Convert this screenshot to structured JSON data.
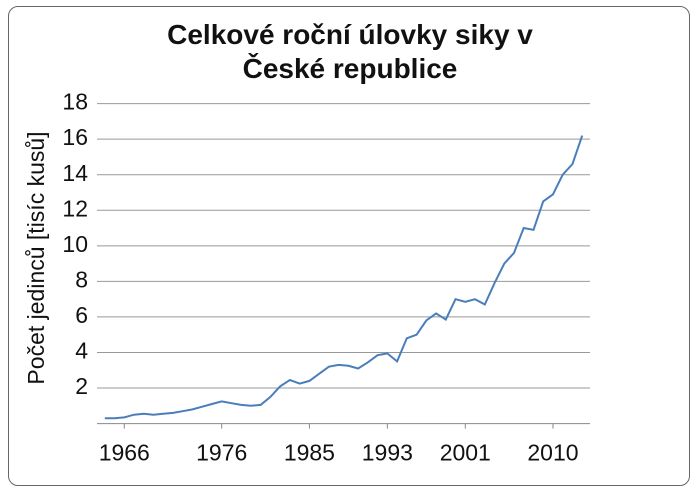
{
  "chart_data": {
    "type": "line",
    "title": "Celkové roční úlovky siky v České republice",
    "y_label": "Počet jedinců [tisíc kusů]",
    "x": [
      1964,
      1965,
      1966,
      1967,
      1968,
      1969,
      1970,
      1971,
      1972,
      1973,
      1974,
      1975,
      1976,
      1977,
      1978,
      1979,
      1980,
      1981,
      1982,
      1983,
      1984,
      1985,
      1986,
      1987,
      1988,
      1989,
      1990,
      1991,
      1992,
      1993,
      1994,
      1995,
      1996,
      1997,
      1998,
      1999,
      2000,
      2001,
      2002,
      2003,
      2004,
      2005,
      2006,
      2007,
      2008,
      2009,
      2010,
      2011,
      2012,
      2013
    ],
    "series": [
      {
        "color": "#4a7ebb",
        "values": [
          0.3,
          0.3,
          0.35,
          0.5,
          0.55,
          0.5,
          0.55,
          0.6,
          0.7,
          0.8,
          0.95,
          1.1,
          1.25,
          1.15,
          1.05,
          1.0,
          1.05,
          1.5,
          2.1,
          2.45,
          2.25,
          2.4,
          2.8,
          3.2,
          3.3,
          3.25,
          3.1,
          3.45,
          3.85,
          3.95,
          3.5,
          4.8,
          5.0,
          5.8,
          6.2,
          5.85,
          7.0,
          6.85,
          7.0,
          6.7,
          7.9,
          9.0,
          9.6,
          11.0,
          10.9,
          12.5,
          12.9,
          14.0,
          14.6,
          16.2
        ]
      }
    ],
    "xlim": [
      1963.2,
      2013.8
    ],
    "xticks": [
      1966,
      1976,
      1985,
      1993,
      2001,
      2010
    ],
    "ylim": [
      0,
      18
    ],
    "yticks": [
      2,
      4,
      6,
      8,
      10,
      12,
      14,
      16,
      18
    ],
    "grid": true
  }
}
